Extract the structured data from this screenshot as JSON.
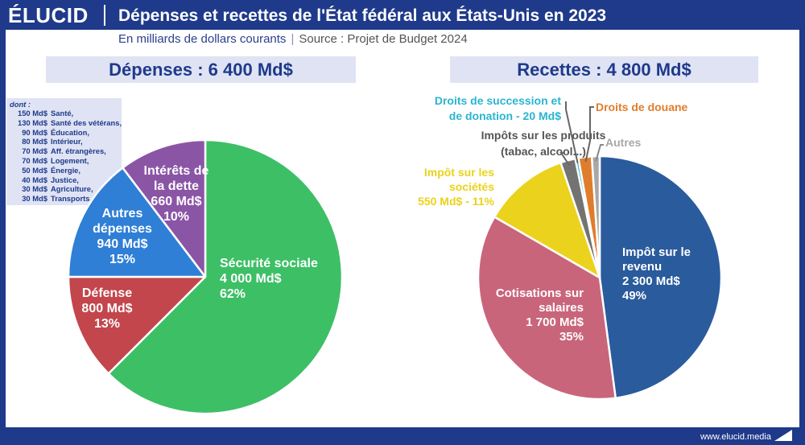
{
  "header": {
    "logo": "ÉLUCID",
    "title": "Dépenses et recettes de l'État fédéral aux États-Unis en 2023",
    "subtitle": "En milliards de dollars courants",
    "source": "Source : Projet de Budget 2024"
  },
  "footer": {
    "url": "www.elucid.media"
  },
  "colors": {
    "brand": "#1f3a8a",
    "securite": "#3dbf66",
    "defense": "#c2464c",
    "autres_dep": "#2f7fd6",
    "interets": "#8b55a6",
    "impot_revenu": "#2a5b9c",
    "cotisations": "#c9657b",
    "impot_societes": "#ebd21c",
    "impot_produits": "#737373",
    "succession": "#29b5d0",
    "douane": "#e07d2c",
    "autres_rec": "#a8a8a8"
  },
  "dont_box": {
    "heading": "dont :",
    "items": [
      {
        "value": "150 Md$",
        "label": "Santé,"
      },
      {
        "value": "130 Md$",
        "label": "Santé des vétérans,"
      },
      {
        "value": "90 Md$",
        "label": "Éducation,"
      },
      {
        "value": "80 Md$",
        "label": "Intérieur,"
      },
      {
        "value": "70 Md$",
        "label": "Aff. étrangères,"
      },
      {
        "value": "70 Md$",
        "label": "Logement,"
      },
      {
        "value": "50 Md$",
        "label": "Énergie,"
      },
      {
        "value": "40 Md$",
        "label": "Justice,"
      },
      {
        "value": "30 Md$",
        "label": "Agriculture,"
      },
      {
        "value": "30 Md$",
        "label": "Transports,"
      }
    ]
  },
  "chart_data": [
    {
      "type": "pie",
      "title": "Dépenses : 6 400 Md$",
      "unit": "Md$",
      "slices": [
        {
          "key": "securite",
          "label_lines": [
            "Sécurité sociale",
            "4 000 Md$",
            "62%"
          ],
          "value": 4000,
          "percent": 62
        },
        {
          "key": "defense",
          "label_lines": [
            "Défense",
            "800 Md$",
            "13%"
          ],
          "value": 800,
          "percent": 13
        },
        {
          "key": "autres_dep",
          "label_lines": [
            "Autres",
            "dépenses",
            "940 Md$",
            "15%"
          ],
          "value": 940,
          "percent": 15
        },
        {
          "key": "interets",
          "label_lines": [
            "Intérêts de",
            "la dette",
            "660 Md$",
            "10%"
          ],
          "value": 660,
          "percent": 10
        }
      ]
    },
    {
      "type": "pie",
      "title": "Recettes : 4 800 Md$",
      "unit": "Md$",
      "slices": [
        {
          "key": "impot_revenu",
          "label_lines": [
            "Impôt sur le",
            "revenu",
            "2 300 Md$",
            "49%"
          ],
          "value": 2300,
          "percent": 49
        },
        {
          "key": "cotisations",
          "label_lines": [
            "Cotisations sur",
            "salaires",
            "1 700 Md$",
            "35%"
          ],
          "value": 1700,
          "percent": 35
        },
        {
          "key": "impot_societes",
          "label_lines": [
            "Impôt sur les",
            "sociétés",
            "550 Md$ - 11%"
          ],
          "value": 550,
          "percent": 11
        },
        {
          "key": "impot_produits",
          "label_lines": [
            "Impôts sur les produits",
            "(tabac, alcool...)"
          ],
          "value": 95
        },
        {
          "key": "succession",
          "label_lines": [
            "Droits de succession et",
            "de donation - 20 Md$"
          ],
          "value": 20
        },
        {
          "key": "douane",
          "label_lines": [
            "Droits de douane"
          ],
          "value": 85
        },
        {
          "key": "autres_rec",
          "label_lines": [
            "Autres"
          ],
          "value": 50
        }
      ]
    }
  ]
}
